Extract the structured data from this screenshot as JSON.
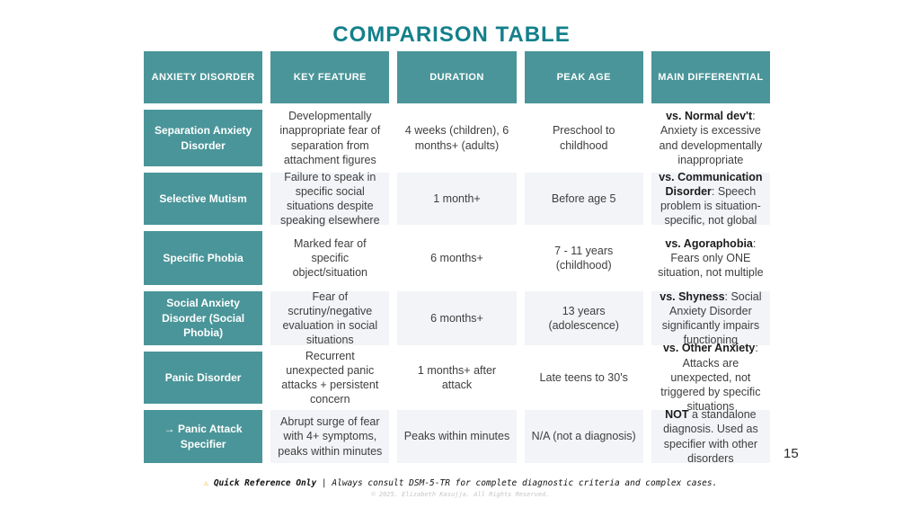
{
  "title": "COMPARISON TABLE",
  "page_number": "15",
  "colors": {
    "teal_cell": "#4a9599",
    "title_teal": "#13808b",
    "alt_row_bg": "#f2f4f7",
    "warning_yellow": "#e8a915"
  },
  "table": {
    "headers": [
      "ANXIETY DISORDER",
      "KEY FEATURE",
      "DURATION",
      "PEAK AGE",
      "MAIN DIFFERENTIAL"
    ],
    "rows": [
      {
        "disorder": "Separation Anxiety Disorder",
        "key_feature": "Developmentally inappropriate fear of separation from attachment figures",
        "duration": "4 weeks (children), 6 months+ (adults)",
        "peak_age": "Preschool to childhood",
        "differential_bold": "vs. Normal dev't",
        "differential_rest": ": Anxiety is excessive and developmentally inappropriate"
      },
      {
        "disorder": "Selective Mutism",
        "key_feature": "Failure to speak in specific social situations despite speaking elsewhere",
        "duration": "1 month+",
        "peak_age": "Before age 5",
        "differential_bold": "vs. Communication Disorder",
        "differential_rest": ": Speech problem is situation-specific, not global"
      },
      {
        "disorder": "Specific Phobia",
        "key_feature": "Marked fear of specific object/situation",
        "duration": "6 months+",
        "peak_age": "7 - 11 years (childhood)",
        "differential_bold": "vs. Agoraphobia",
        "differential_rest": ": Fears only ONE situation, not multiple"
      },
      {
        "disorder": "Social Anxiety Disorder (Social Phobia)",
        "key_feature": "Fear of scrutiny/negative evaluation in social situations",
        "duration": "6 months+",
        "peak_age": "13 years (adolescence)",
        "differential_bold": "vs. Shyness",
        "differential_rest": ": Social Anxiety Disorder significantly impairs functioning"
      },
      {
        "disorder": "Panic Disorder",
        "key_feature": "Recurrent unexpected panic attacks + persistent concern",
        "duration": "1 months+ after attack",
        "peak_age": "Late teens to 30's",
        "differential_bold": "vs. Other Anxiety",
        "differential_rest": ": Attacks are unexpected, not triggered by specific situations"
      },
      {
        "disorder": "→ Panic Attack Specifier",
        "key_feature": "Abrupt surge of fear with 4+ symptoms, peaks within minutes",
        "duration": "Peaks within minutes",
        "peak_age": "N/A (not a diagnosis)",
        "differential_bold": "NOT",
        "differential_rest": " a standalone diagnosis. Used as specifier with other disorders"
      }
    ]
  },
  "footer": {
    "warning_icon": "⚠",
    "notice_bold": "Quick Reference Only",
    "notice_separator": " | ",
    "notice_rest": "Always consult DSM-5-TR for complete diagnostic criteria and complex cases.",
    "copyright": "© 2025. Elizabeth Kasujja. All Rights Reserved."
  }
}
